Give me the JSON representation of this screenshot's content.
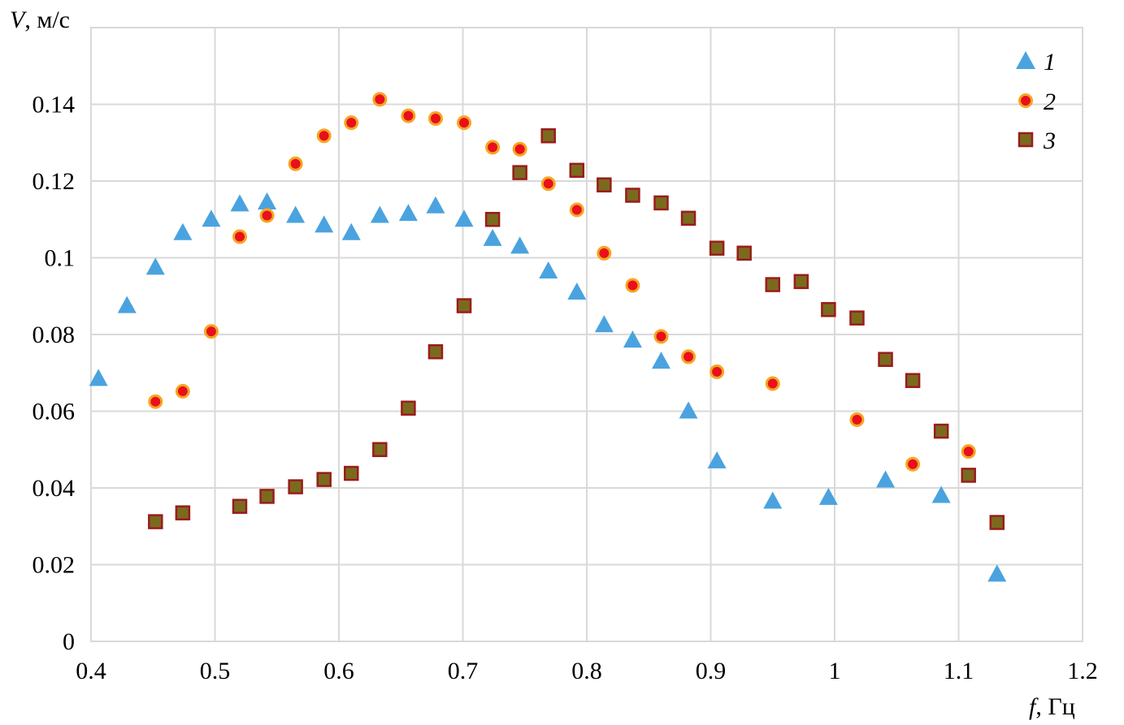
{
  "chart_data": {
    "type": "scatter",
    "ylabel_var": "V",
    "ylabel_unit": ", м/с",
    "xlabel_var": "f",
    "xlabel_unit": ", Гц",
    "xlim": [
      0.4,
      1.2
    ],
    "ylim": [
      0,
      0.16
    ],
    "xticks": [
      0.4,
      0.5,
      0.6,
      0.7,
      0.8,
      0.9,
      1.0,
      1.1,
      1.2
    ],
    "xtick_labels": [
      "0.4",
      "0.5",
      "0.6",
      "0.7",
      "0.8",
      "0.9",
      "1",
      "1.1",
      "1.2"
    ],
    "yticks": [
      0,
      0.02,
      0.04,
      0.06,
      0.08,
      0.1,
      0.12,
      0.14
    ],
    "ytick_labels": [
      "0",
      "0.02",
      "0.04",
      "0.06",
      "0.08",
      "0.1",
      "0.12",
      "0.14"
    ],
    "grid": true,
    "legend_position": "top-right",
    "series": [
      {
        "name": "1",
        "marker": "triangle",
        "color": "#4aa3df",
        "x": [
          0.406,
          0.429,
          0.452,
          0.474,
          0.497,
          0.52,
          0.542,
          0.565,
          0.588,
          0.61,
          0.633,
          0.656,
          0.678,
          0.701,
          0.724,
          0.746,
          0.769,
          0.792,
          0.814,
          0.837,
          0.86,
          0.882,
          0.905,
          0.95,
          0.995,
          1.041,
          1.086,
          1.131
        ],
        "y": [
          0.0685,
          0.0875,
          0.0975,
          0.1065,
          0.11,
          0.114,
          0.1145,
          0.111,
          0.1085,
          0.1065,
          0.111,
          0.1115,
          0.1135,
          0.11,
          0.105,
          0.103,
          0.0965,
          0.091,
          0.0825,
          0.0785,
          0.073,
          0.06,
          0.047,
          0.0365,
          0.0375,
          0.042,
          0.038,
          0.0175
        ]
      },
      {
        "name": "2",
        "marker": "circle",
        "color": "#e8101a",
        "edge": "#f5a623",
        "x": [
          0.452,
          0.474,
          0.497,
          0.52,
          0.542,
          0.565,
          0.588,
          0.61,
          0.633,
          0.656,
          0.678,
          0.701,
          0.724,
          0.746,
          0.769,
          0.792,
          0.814,
          0.837,
          0.86,
          0.882,
          0.905,
          0.95,
          1.018,
          1.063,
          1.108
        ],
        "y": [
          0.0625,
          0.0652,
          0.0808,
          0.1055,
          0.111,
          0.1245,
          0.1318,
          0.1352,
          0.1413,
          0.137,
          0.1363,
          0.1352,
          0.1288,
          0.1283,
          0.1193,
          0.1125,
          0.1012,
          0.0928,
          0.0795,
          0.0742,
          0.0703,
          0.0672,
          0.0578,
          0.0462,
          0.0495
        ]
      },
      {
        "name": "3",
        "marker": "square",
        "color": "#7b6a1e",
        "edge": "#9b1c1c",
        "x": [
          0.452,
          0.474,
          0.52,
          0.542,
          0.565,
          0.588,
          0.61,
          0.633,
          0.656,
          0.678,
          0.701,
          0.724,
          0.746,
          0.769,
          0.792,
          0.814,
          0.837,
          0.86,
          0.882,
          0.905,
          0.927,
          0.95,
          0.973,
          0.995,
          1.018,
          1.041,
          1.063,
          1.086,
          1.108,
          1.131
        ],
        "y": [
          0.0312,
          0.0335,
          0.0352,
          0.0378,
          0.0403,
          0.0422,
          0.0438,
          0.05,
          0.0608,
          0.0755,
          0.0875,
          0.11,
          0.1222,
          0.1318,
          0.1228,
          0.119,
          0.1163,
          0.1143,
          0.1103,
          0.1025,
          0.1012,
          0.093,
          0.0938,
          0.0865,
          0.0843,
          0.0735,
          0.068,
          0.0548,
          0.0433,
          0.031
        ]
      }
    ]
  }
}
